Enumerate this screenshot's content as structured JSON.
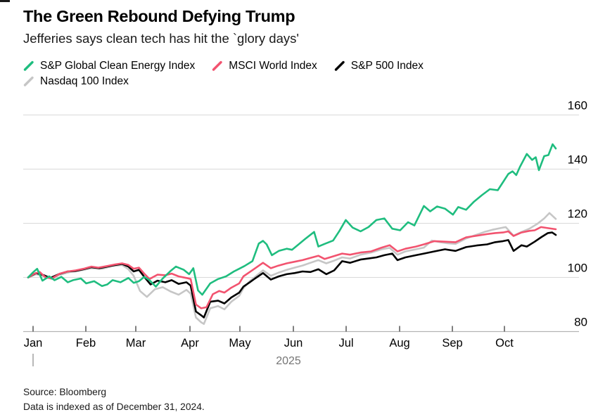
{
  "header": {
    "title": "The Green Rebound Defying Trump",
    "subtitle": "Jefferies says clean tech has hit the `glory days'"
  },
  "legend": {
    "rows": [
      [
        0,
        1,
        2
      ],
      [
        3
      ]
    ]
  },
  "footer": {
    "source": "Source: Bloomberg",
    "note": "Data is indexed as of December 31, 2024."
  },
  "colors": {
    "clean_energy": "#1fbd7f",
    "msci_world": "#f2536f",
    "sp500": "#000000",
    "nasdaq": "#c6c6c6",
    "gridline": "#d9d9d9",
    "axis_line": "#b3b3b3",
    "tick": "#4a4a4a",
    "axis_label": "#000000",
    "year_label": "#757575"
  },
  "chart_data": {
    "type": "line",
    "title": "The Green Rebound Defying Trump",
    "xlabel": "2025",
    "ylabel": "",
    "x_ticks": [
      "Jan",
      "Feb",
      "Mar",
      "Apr",
      "May",
      "Jun",
      "Jul",
      "Aug",
      "Sep",
      "Oct"
    ],
    "y_ticks": [
      80,
      100,
      120,
      140,
      160
    ],
    "ylim": [
      80,
      160
    ],
    "x_unit": "months since Dec 31, 2024",
    "xlim": [
      0,
      10
    ],
    "grid": true,
    "legend_position": "top",
    "year_label": "2025",
    "series": [
      {
        "name": "S&P Global Clean Energy Index",
        "color": "#1fbd7f",
        "points": [
          [
            0,
            100
          ],
          [
            0.1,
            102.0
          ],
          [
            0.17,
            103.2
          ],
          [
            0.27,
            98.8
          ],
          [
            0.4,
            100.4
          ],
          [
            0.5,
            99.0
          ],
          [
            0.63,
            100.2
          ],
          [
            0.75,
            98.2
          ],
          [
            0.85,
            99.0
          ],
          [
            1.0,
            99.6
          ],
          [
            1.1,
            97.8
          ],
          [
            1.25,
            98.6
          ],
          [
            1.4,
            96.8
          ],
          [
            1.5,
            97.4
          ],
          [
            1.6,
            99.0
          ],
          [
            1.75,
            98.2
          ],
          [
            1.9,
            99.8
          ],
          [
            2.0,
            98.0
          ],
          [
            2.1,
            98.6
          ],
          [
            2.2,
            100.2
          ],
          [
            2.3,
            99.0
          ],
          [
            2.42,
            96.6
          ],
          [
            2.55,
            99.6
          ],
          [
            2.7,
            102.4
          ],
          [
            2.8,
            104.0
          ],
          [
            2.95,
            102.8
          ],
          [
            3.05,
            101.2
          ],
          [
            3.13,
            103.4
          ],
          [
            3.22,
            95.2
          ],
          [
            3.3,
            93.6
          ],
          [
            3.45,
            97.8
          ],
          [
            3.6,
            99.4
          ],
          [
            3.75,
            100.4
          ],
          [
            3.9,
            102.2
          ],
          [
            4.0,
            103.2
          ],
          [
            4.1,
            104.2
          ],
          [
            4.25,
            106.0
          ],
          [
            4.37,
            112.5
          ],
          [
            4.45,
            113.5
          ],
          [
            4.52,
            112.2
          ],
          [
            4.62,
            108.2
          ],
          [
            4.75,
            109.8
          ],
          [
            4.9,
            110.6
          ],
          [
            5.0,
            110.2
          ],
          [
            5.1,
            111.8
          ],
          [
            5.25,
            114.2
          ],
          [
            5.42,
            116.8
          ],
          [
            5.5,
            111.4
          ],
          [
            5.62,
            112.4
          ],
          [
            5.78,
            113.6
          ],
          [
            5.9,
            117.2
          ],
          [
            6.02,
            121.2
          ],
          [
            6.15,
            118.4
          ],
          [
            6.3,
            117.0
          ],
          [
            6.45,
            118.6
          ],
          [
            6.6,
            121.2
          ],
          [
            6.75,
            121.8
          ],
          [
            6.9,
            118.0
          ],
          [
            7.05,
            117.4
          ],
          [
            7.2,
            120.4
          ],
          [
            7.32,
            119.2
          ],
          [
            7.5,
            126.4
          ],
          [
            7.62,
            124.4
          ],
          [
            7.75,
            126.2
          ],
          [
            7.9,
            125.4
          ],
          [
            8.05,
            123.2
          ],
          [
            8.15,
            126.0
          ],
          [
            8.3,
            125.0
          ],
          [
            8.45,
            128.0
          ],
          [
            8.6,
            130.4
          ],
          [
            8.75,
            132.6
          ],
          [
            8.9,
            132.2
          ],
          [
            9.0,
            135.2
          ],
          [
            9.1,
            138.2
          ],
          [
            9.18,
            139.2
          ],
          [
            9.25,
            137.8
          ],
          [
            9.32,
            140.8
          ],
          [
            9.45,
            145.6
          ],
          [
            9.55,
            143.4
          ],
          [
            9.62,
            144.4
          ],
          [
            9.68,
            139.6
          ],
          [
            9.78,
            144.8
          ],
          [
            9.86,
            145.2
          ],
          [
            9.94,
            149.2
          ],
          [
            10,
            147.6
          ]
        ]
      },
      {
        "name": "MSCI World Index",
        "color": "#f2536f",
        "points": [
          [
            0,
            100
          ],
          [
            0.12,
            101.4
          ],
          [
            0.22,
            102.0
          ],
          [
            0.33,
            100.0
          ],
          [
            0.45,
            99.6
          ],
          [
            0.6,
            101.4
          ],
          [
            0.75,
            102.2
          ],
          [
            0.9,
            102.6
          ],
          [
            1.05,
            103.2
          ],
          [
            1.2,
            104.0
          ],
          [
            1.33,
            103.6
          ],
          [
            1.5,
            104.2
          ],
          [
            1.65,
            104.8
          ],
          [
            1.78,
            105.2
          ],
          [
            1.9,
            104.6
          ],
          [
            2.0,
            103.2
          ],
          [
            2.1,
            103.6
          ],
          [
            2.2,
            101.4
          ],
          [
            2.3,
            99.4
          ],
          [
            2.45,
            101.0
          ],
          [
            2.6,
            100.8
          ],
          [
            2.72,
            101.4
          ],
          [
            2.85,
            100.4
          ],
          [
            3.0,
            99.8
          ],
          [
            3.08,
            99.4
          ],
          [
            3.18,
            90.0
          ],
          [
            3.28,
            88.6
          ],
          [
            3.38,
            89.0
          ],
          [
            3.5,
            93.8
          ],
          [
            3.62,
            95.0
          ],
          [
            3.72,
            94.4
          ],
          [
            3.85,
            96.2
          ],
          [
            4.0,
            97.8
          ],
          [
            4.08,
            100.4
          ],
          [
            4.2,
            102.0
          ],
          [
            4.32,
            103.6
          ],
          [
            4.45,
            105.4
          ],
          [
            4.6,
            103.4
          ],
          [
            4.72,
            104.2
          ],
          [
            4.9,
            105.2
          ],
          [
            5.05,
            105.8
          ],
          [
            5.2,
            106.4
          ],
          [
            5.35,
            107.2
          ],
          [
            5.5,
            108.0
          ],
          [
            5.62,
            106.8
          ],
          [
            5.75,
            107.6
          ],
          [
            5.95,
            108.8
          ],
          [
            6.1,
            108.4
          ],
          [
            6.3,
            109.2
          ],
          [
            6.5,
            109.6
          ],
          [
            6.7,
            111.0
          ],
          [
            6.85,
            111.9
          ],
          [
            7.0,
            109.6
          ],
          [
            7.15,
            110.6
          ],
          [
            7.35,
            111.4
          ],
          [
            7.5,
            112.2
          ],
          [
            7.7,
            113.4
          ],
          [
            7.9,
            113.2
          ],
          [
            8.1,
            113.0
          ],
          [
            8.3,
            114.8
          ],
          [
            8.5,
            115.4
          ],
          [
            8.7,
            116.0
          ],
          [
            8.85,
            116.4
          ],
          [
            9.0,
            116.6
          ],
          [
            9.1,
            117.0
          ],
          [
            9.2,
            115.3
          ],
          [
            9.35,
            116.6
          ],
          [
            9.5,
            117.2
          ],
          [
            9.6,
            117.4
          ],
          [
            9.72,
            118.6
          ],
          [
            9.85,
            118.2
          ],
          [
            10,
            117.8
          ]
        ]
      },
      {
        "name": "S&P 500 Index",
        "color": "#000000",
        "points": [
          [
            0,
            100
          ],
          [
            0.15,
            101.6
          ],
          [
            0.3,
            100.8
          ],
          [
            0.42,
            99.8
          ],
          [
            0.58,
            101.2
          ],
          [
            0.75,
            102.2
          ],
          [
            0.9,
            102.4
          ],
          [
            1.05,
            103.0
          ],
          [
            1.2,
            103.8
          ],
          [
            1.35,
            103.4
          ],
          [
            1.5,
            104.0
          ],
          [
            1.65,
            104.6
          ],
          [
            1.78,
            105.0
          ],
          [
            1.9,
            104.0
          ],
          [
            2.0,
            102.2
          ],
          [
            2.1,
            102.8
          ],
          [
            2.2,
            100.2
          ],
          [
            2.32,
            97.4
          ],
          [
            2.45,
            98.8
          ],
          [
            2.6,
            98.2
          ],
          [
            2.72,
            99.0
          ],
          [
            2.85,
            97.6
          ],
          [
            3.0,
            98.2
          ],
          [
            3.08,
            97.0
          ],
          [
            3.18,
            87.4
          ],
          [
            3.28,
            86.0
          ],
          [
            3.33,
            85.2
          ],
          [
            3.45,
            91.0
          ],
          [
            3.6,
            91.4
          ],
          [
            3.72,
            90.4
          ],
          [
            3.85,
            92.6
          ],
          [
            4.0,
            94.4
          ],
          [
            4.08,
            96.6
          ],
          [
            4.2,
            98.2
          ],
          [
            4.3,
            99.6
          ],
          [
            4.45,
            101.6
          ],
          [
            4.6,
            99.2
          ],
          [
            4.75,
            100.4
          ],
          [
            4.9,
            101.2
          ],
          [
            5.05,
            101.6
          ],
          [
            5.2,
            102.2
          ],
          [
            5.35,
            102.0
          ],
          [
            5.5,
            103.0
          ],
          [
            5.65,
            101.2
          ],
          [
            5.8,
            102.6
          ],
          [
            5.95,
            106.0
          ],
          [
            6.1,
            105.4
          ],
          [
            6.3,
            106.6
          ],
          [
            6.45,
            107.0
          ],
          [
            6.6,
            107.4
          ],
          [
            6.75,
            108.2
          ],
          [
            6.9,
            108.8
          ],
          [
            7.0,
            106.4
          ],
          [
            7.15,
            107.4
          ],
          [
            7.35,
            108.2
          ],
          [
            7.5,
            108.8
          ],
          [
            7.7,
            109.6
          ],
          [
            7.9,
            110.4
          ],
          [
            8.1,
            109.8
          ],
          [
            8.3,
            111.2
          ],
          [
            8.5,
            111.8
          ],
          [
            8.7,
            112.2
          ],
          [
            8.85,
            113.0
          ],
          [
            9.0,
            113.4
          ],
          [
            9.1,
            113.8
          ],
          [
            9.2,
            109.8
          ],
          [
            9.35,
            111.9
          ],
          [
            9.45,
            111.4
          ],
          [
            9.6,
            113.2
          ],
          [
            9.72,
            114.8
          ],
          [
            9.85,
            116.4
          ],
          [
            9.93,
            116.6
          ],
          [
            10,
            115.7
          ]
        ]
      },
      {
        "name": "Nasdaq 100 Index",
        "color": "#c6c6c6",
        "points": [
          [
            0,
            100
          ],
          [
            0.15,
            101.2
          ],
          [
            0.3,
            100.4
          ],
          [
            0.45,
            99.4
          ],
          [
            0.6,
            101.0
          ],
          [
            0.8,
            102.0
          ],
          [
            1.0,
            102.6
          ],
          [
            1.2,
            103.4
          ],
          [
            1.4,
            103.2
          ],
          [
            1.6,
            104.2
          ],
          [
            1.78,
            104.6
          ],
          [
            1.9,
            103.0
          ],
          [
            2.0,
            100.6
          ],
          [
            2.12,
            95.0
          ],
          [
            2.25,
            92.8
          ],
          [
            2.4,
            95.6
          ],
          [
            2.55,
            96.4
          ],
          [
            2.7,
            94.8
          ],
          [
            2.85,
            93.6
          ],
          [
            3.0,
            95.4
          ],
          [
            3.08,
            94.0
          ],
          [
            3.18,
            85.2
          ],
          [
            3.28,
            83.4
          ],
          [
            3.33,
            82.8
          ],
          [
            3.45,
            88.6
          ],
          [
            3.6,
            89.4
          ],
          [
            3.72,
            88.2
          ],
          [
            3.85,
            91.0
          ],
          [
            4.0,
            93.2
          ],
          [
            4.08,
            96.0
          ],
          [
            4.2,
            98.6
          ],
          [
            4.3,
            100.2
          ],
          [
            4.45,
            102.6
          ],
          [
            4.6,
            100.6
          ],
          [
            4.75,
            101.8
          ],
          [
            4.9,
            102.8
          ],
          [
            5.05,
            103.6
          ],
          [
            5.2,
            104.4
          ],
          [
            5.35,
            105.4
          ],
          [
            5.5,
            106.4
          ],
          [
            5.65,
            105.2
          ],
          [
            5.8,
            106.2
          ],
          [
            5.95,
            107.4
          ],
          [
            6.1,
            107.0
          ],
          [
            6.3,
            108.4
          ],
          [
            6.5,
            109.2
          ],
          [
            6.7,
            110.4
          ],
          [
            6.85,
            110.9
          ],
          [
            7.0,
            108.4
          ],
          [
            7.15,
            109.6
          ],
          [
            7.35,
            110.4
          ],
          [
            7.5,
            111.0
          ],
          [
            7.65,
            113.6
          ],
          [
            7.8,
            113.0
          ],
          [
            7.95,
            112.6
          ],
          [
            8.1,
            112.4
          ],
          [
            8.3,
            114.4
          ],
          [
            8.5,
            115.8
          ],
          [
            8.65,
            116.8
          ],
          [
            8.8,
            117.6
          ],
          [
            8.95,
            118.2
          ],
          [
            9.05,
            118.6
          ],
          [
            9.2,
            115.4
          ],
          [
            9.35,
            116.8
          ],
          [
            9.5,
            118.0
          ],
          [
            9.65,
            119.8
          ],
          [
            9.78,
            121.8
          ],
          [
            9.88,
            123.8
          ],
          [
            10,
            121.6
          ]
        ]
      }
    ]
  }
}
